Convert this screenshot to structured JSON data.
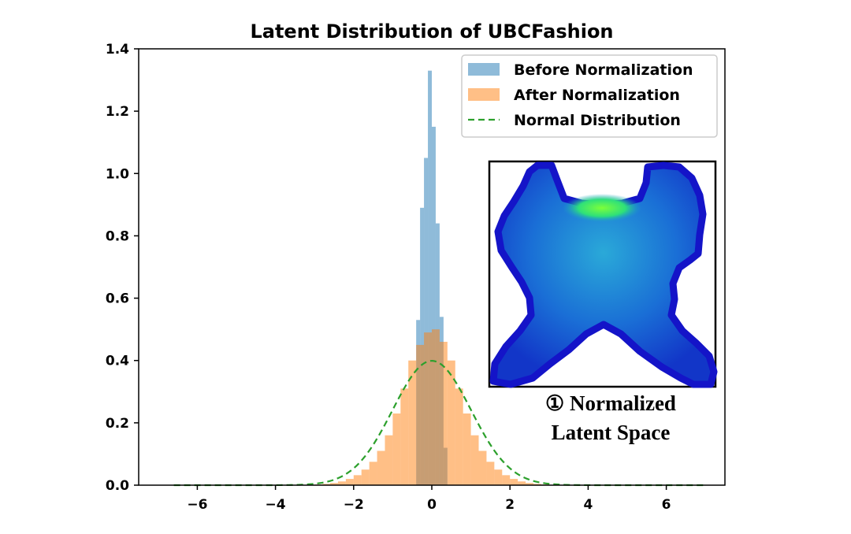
{
  "chart_data": {
    "type": "histogram",
    "title": "Latent Distribution of UBCFashion",
    "xlabel": "",
    "ylabel": "",
    "xlim": [
      -7.5,
      7.5
    ],
    "ylim": [
      0,
      1.4
    ],
    "x_ticks": [
      -6,
      -4,
      -2,
      0,
      2,
      4,
      6
    ],
    "x_tick_labels": [
      "−6",
      "−4",
      "−2",
      "0",
      "2",
      "4",
      "6"
    ],
    "y_ticks": [
      0.0,
      0.2,
      0.4,
      0.6,
      0.8,
      1.0,
      1.2,
      1.4
    ],
    "y_tick_labels": [
      "0.0",
      "0.2",
      "0.4",
      "0.6",
      "0.8",
      "1.0",
      "1.2",
      "1.4"
    ],
    "grid": false,
    "legend_position": "top-right",
    "series": [
      {
        "name": "Before Normalization",
        "kind": "histogram",
        "color": "#1f77b4",
        "alpha": 0.5,
        "bin_edges": [
          -0.4,
          -0.3,
          -0.2,
          -0.1,
          0.0,
          0.1,
          0.2,
          0.3,
          0.4
        ],
        "density": [
          0.53,
          0.89,
          1.05,
          1.33,
          1.15,
          0.84,
          0.54,
          0.12
        ]
      },
      {
        "name": "After Normalization",
        "kind": "histogram",
        "color": "#ff7f0e",
        "alpha": 0.5,
        "bin_edges": [
          -3.0,
          -2.8,
          -2.6,
          -2.4,
          -2.2,
          -2.0,
          -1.8,
          -1.6,
          -1.4,
          -1.2,
          -1.0,
          -0.8,
          -0.6,
          -0.4,
          -0.2,
          0.0,
          0.2,
          0.4,
          0.6,
          0.8,
          1.0,
          1.2,
          1.4,
          1.6,
          1.8,
          2.0,
          2.2,
          2.4,
          2.6,
          2.8,
          3.0
        ],
        "density": [
          0.002,
          0.004,
          0.007,
          0.012,
          0.02,
          0.032,
          0.05,
          0.075,
          0.11,
          0.16,
          0.23,
          0.31,
          0.4,
          0.45,
          0.49,
          0.5,
          0.46,
          0.4,
          0.31,
          0.23,
          0.16,
          0.11,
          0.075,
          0.05,
          0.032,
          0.02,
          0.012,
          0.007,
          0.004,
          0.002
        ]
      },
      {
        "name": "Normal Distribution",
        "kind": "line",
        "style": "dashed",
        "color": "#2ca02c",
        "mean": 0,
        "std": 1,
        "x_range": [
          -6.6,
          7.0
        ]
      }
    ],
    "inset": {
      "caption_line1": "① Normalized",
      "caption_line2": "Latent Space",
      "image": "normalized-latent-space-render"
    }
  }
}
